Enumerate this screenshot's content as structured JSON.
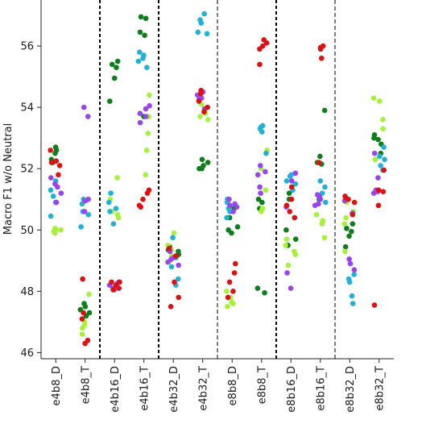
{
  "chart_data": {
    "type": "scatter",
    "ylabel": "Macro F1 w/o Neutral",
    "xlabel": "",
    "ylim": [
      45.8,
      57.5
    ],
    "yticks": [
      46,
      48,
      50,
      52,
      54,
      56
    ],
    "categories": [
      "e4b8_D",
      "e4b8_T",
      "e4b16_D",
      "e4b16_T",
      "e4b32_D",
      "e4b32_T",
      "e8b8_D",
      "e8b8_T",
      "e8b16_D",
      "e8b16_T",
      "e8b32_D",
      "e8b32_T"
    ],
    "separators": [
      {
        "after": "e4b8_T",
        "style": "thick"
      },
      {
        "after": "e4b16_T",
        "style": "thick"
      },
      {
        "after": "e4b32_T",
        "style": "thin"
      },
      {
        "after": "e8b8_T",
        "style": "thick"
      },
      {
        "after": "e8b16_T",
        "style": "thin"
      }
    ],
    "grid": false,
    "legend": "none",
    "colors": {
      "green": "#0b7f1a",
      "lime": "#a6f23a",
      "cyan": "#1fb2d6",
      "purple": "#9a44ee",
      "red": "#dd1111"
    },
    "series": [
      {
        "color": "green",
        "values": [
          [
            52.7,
            52.6,
            52.3,
            52.2,
            52.5
          ],
          [
            47.5,
            47.4,
            47.3,
            47.2,
            47.6
          ],
          [
            55.4,
            55.5,
            55.3,
            54.2,
            54.95
          ],
          [
            56.95,
            56.9,
            56.45,
            56.35,
            53.7
          ],
          [
            49.45,
            49.35,
            49.3,
            49.2,
            49.4
          ],
          [
            52.3,
            52.2,
            52.0,
            52.0,
            52.1
          ],
          [
            50.7,
            50.4,
            50.0,
            50.1,
            49.9
          ],
          [
            51.0,
            50.9,
            50.7,
            48.1,
            47.95
          ],
          [
            51.2,
            51.0,
            50.0,
            49.7,
            49.5
          ],
          [
            53.9,
            52.4,
            52.2,
            52.15,
            51.0
          ],
          [
            50.2,
            49.95,
            49.45,
            50.05,
            49.8
          ],
          [
            53.1,
            53.0,
            52.95,
            52.8,
            52.5
          ]
        ]
      },
      {
        "color": "lime",
        "values": [
          [
            50.0,
            49.95,
            49.9,
            50.0,
            50.05
          ],
          [
            47.9,
            47.0,
            46.9,
            46.8,
            46.6
          ],
          [
            51.7,
            51.0,
            50.6,
            50.5,
            50.4
          ],
          [
            54.4,
            53.7,
            53.15,
            52.6,
            51.8
          ],
          [
            49.9,
            49.5,
            49.35,
            49.15,
            49.0
          ],
          [
            54.1,
            53.9,
            53.8,
            53.7,
            53.6
          ],
          [
            48.0,
            47.8,
            47.6,
            47.65,
            47.5
          ],
          [
            52.6,
            52.0,
            51.3,
            50.7,
            50.6
          ],
          [
            49.7,
            49.3,
            49.2,
            48.85,
            49.5
          ],
          [
            50.5,
            50.3,
            50.25,
            50.2,
            49.75
          ],
          [
            50.9,
            50.6,
            50.4,
            50.2,
            49.3
          ],
          [
            54.3,
            54.2,
            53.6,
            53.3,
            52.3
          ]
        ]
      },
      {
        "color": "cyan",
        "values": [
          [
            51.6,
            51.3,
            51.1,
            50.9,
            50.45
          ],
          [
            51.0,
            50.85,
            50.6,
            50.5,
            50.1
          ],
          [
            51.2,
            50.9,
            50.7,
            50.6,
            50.2
          ],
          [
            55.8,
            55.7,
            55.6,
            55.5,
            55.3
          ],
          [
            49.75,
            49.1,
            48.8,
            48.4,
            48.2
          ],
          [
            57.05,
            56.85,
            56.75,
            56.45,
            56.4
          ],
          [
            51.0,
            50.9,
            50.7,
            50.6,
            50.4
          ],
          [
            53.4,
            53.35,
            53.3,
            53.2,
            52.5
          ],
          [
            51.8,
            51.75,
            51.6,
            51.5,
            51.3
          ],
          [
            51.6,
            51.4,
            51.2,
            51.05,
            50.9
          ],
          [
            48.55,
            48.4,
            48.3,
            47.85,
            47.6
          ],
          [
            52.7,
            52.4,
            52.3,
            52.1,
            51.95
          ]
        ]
      },
      {
        "color": "purple",
        "values": [
          [
            51.5,
            51.7,
            51.2,
            50.9,
            51.4
          ],
          [
            54.0,
            53.7,
            51.0,
            50.95,
            50.6
          ],
          [
            48.3,
            48.25,
            48.2,
            48.1,
            48.05
          ],
          [
            54.05,
            53.95,
            53.8,
            53.7,
            53.5
          ],
          [
            49.3,
            49.1,
            49.05,
            48.95,
            48.85
          ],
          [
            54.5,
            54.4,
            54.3,
            54.25,
            53.95
          ],
          [
            51.0,
            50.85,
            50.8,
            50.75,
            50.6
          ],
          [
            52.1,
            51.9,
            51.8,
            51.4,
            51.2
          ],
          [
            51.85,
            51.6,
            50.75,
            48.6,
            48.1
          ],
          [
            51.15,
            51.1,
            51.0,
            50.85,
            50.8
          ],
          [
            50.95,
            50.55,
            49.05,
            48.9,
            48.7
          ],
          [
            52.5,
            51.7,
            51.3,
            51.25,
            51.2
          ]
        ]
      },
      {
        "color": "red",
        "values": [
          [
            52.2,
            51.8,
            52.1,
            52.6,
            52.25
          ],
          [
            48.4,
            47.3,
            47.1,
            46.4,
            46.3
          ],
          [
            48.3,
            48.2,
            48.1,
            48.3,
            48.05
          ],
          [
            51.3,
            51.2,
            51.0,
            50.8,
            50.75
          ],
          [
            49.4,
            49.15,
            48.3,
            47.8,
            47.5
          ],
          [
            54.55,
            54.45,
            54.2,
            54.0,
            53.85
          ],
          [
            48.9,
            48.6,
            48.3,
            48.0,
            47.8
          ],
          [
            56.2,
            56.1,
            56.0,
            55.9,
            55.4
          ],
          [
            51.0,
            51.4,
            50.8,
            50.6,
            50.4
          ],
          [
            56.0,
            55.95,
            55.9,
            55.6,
            52.2
          ],
          [
            51.1,
            51.05,
            51.0,
            50.9,
            50.5
          ],
          [
            51.95,
            51.3,
            51.25,
            50.8,
            47.55
          ]
        ]
      }
    ]
  }
}
